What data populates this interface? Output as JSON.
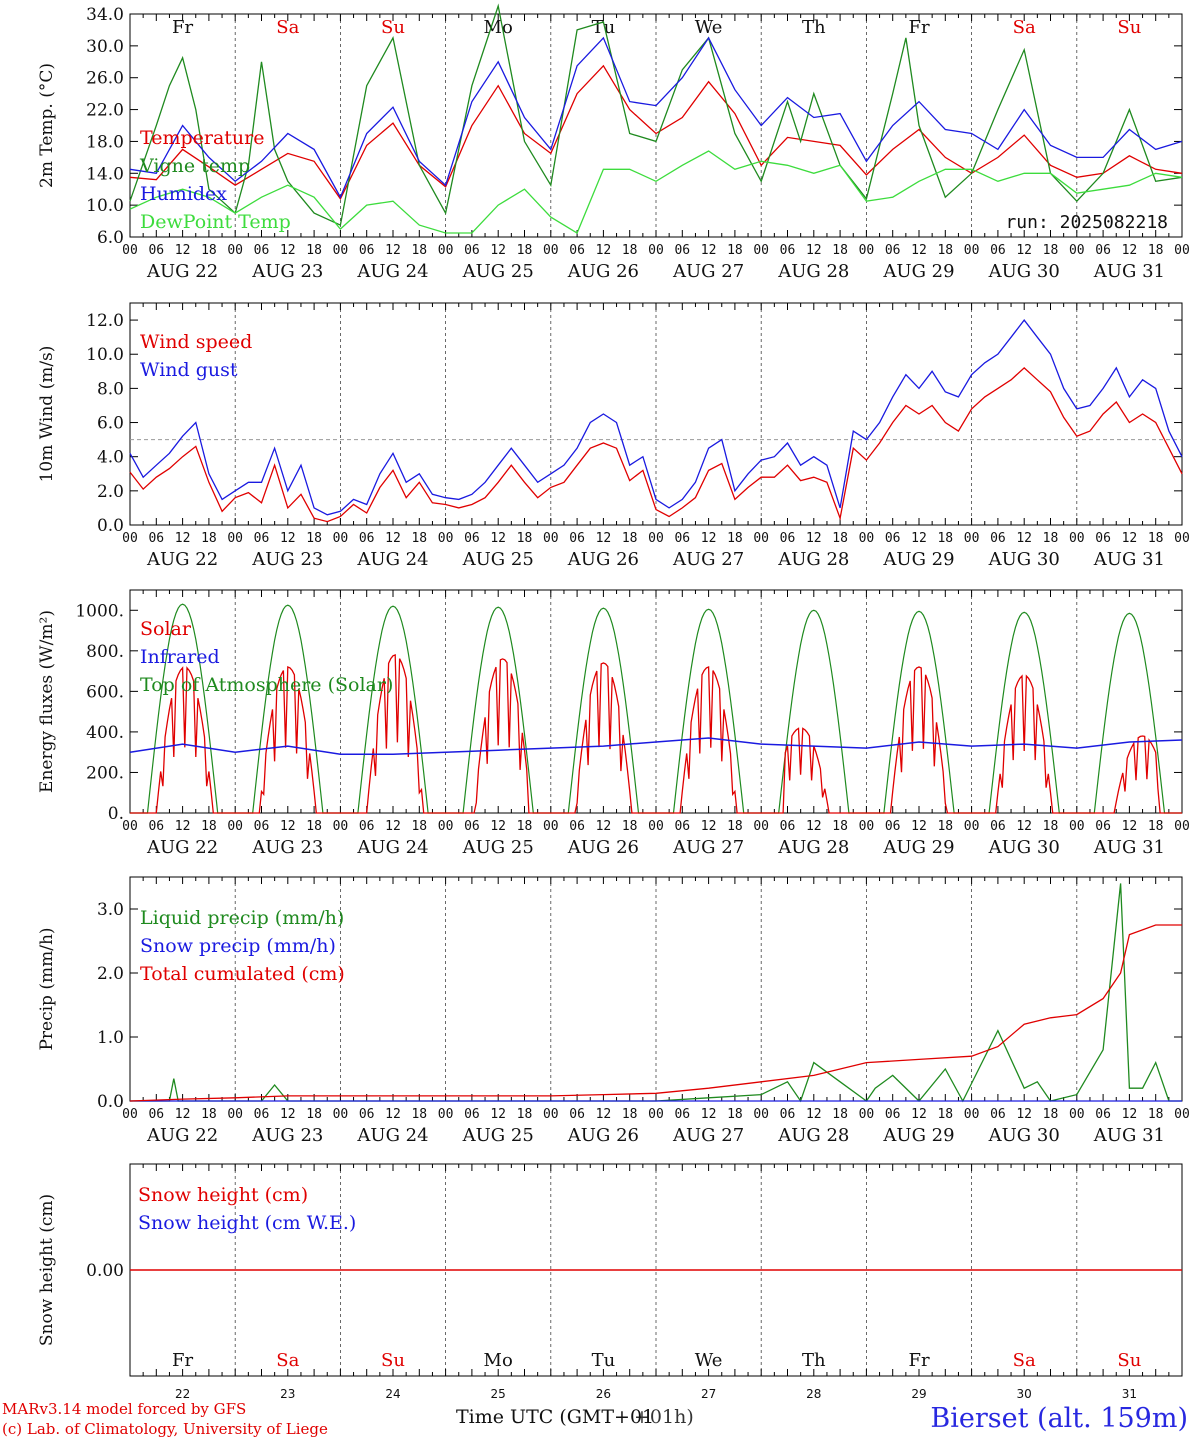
{
  "run_label": "run: 2025082218",
  "x_axis": {
    "hour_ticks": [
      "00",
      "06",
      "12",
      "18"
    ],
    "end_tick": "00",
    "dates": [
      "AUG 22",
      "AUG 23",
      "AUG 24",
      "AUG 25",
      "AUG 26",
      "AUG 27",
      "AUG 28",
      "AUG 29",
      "AUG 30",
      "AUG 31"
    ],
    "weekdays": [
      "Fr",
      "Sa",
      "Su",
      "Mo",
      "Tu",
      "We",
      "Th",
      "Fr",
      "Sa",
      "Su"
    ],
    "weekend_flags": [
      false,
      true,
      true,
      false,
      false,
      false,
      false,
      false,
      true,
      true
    ],
    "day_numbers": [
      "22",
      "23",
      "24",
      "25",
      "26",
      "27",
      "28",
      "29",
      "30",
      "31"
    ],
    "title": "Time UTC (GMT+01",
    "title_overlap": "+01h)"
  },
  "footer": {
    "model": "MARv3.14 model forced by GFS",
    "lab": "(c) Lab. of Climatology, University of Liege",
    "station": "Bierset (alt. 159m)"
  },
  "colors": {
    "red": "#e00000",
    "blue": "#1a1ae0",
    "green": "#1f8a1f",
    "lightgreen": "#3ddc3d",
    "grid": "#444444"
  },
  "chart_data": [
    {
      "type": "line",
      "id": "temp",
      "ylabel": "2m Temp. (°C)",
      "ylim": [
        6.0,
        34.0
      ],
      "yticks": [
        "6.0",
        "10.0",
        "14.0",
        "18.0",
        "22.0",
        "26.0",
        "30.0",
        "34.0"
      ],
      "ytick_values": [
        6,
        10,
        14,
        18,
        22,
        26,
        30,
        34
      ],
      "x_unit": "hours since 2025-08-22 00 UTC",
      "series": [
        {
          "name": "Temperature",
          "color": "red",
          "x": [
            0,
            6,
            12,
            18,
            24,
            30,
            36,
            42,
            48,
            54,
            60,
            66,
            72,
            78,
            84,
            90,
            96,
            102,
            108,
            114,
            120,
            126,
            132,
            138,
            144,
            150,
            156,
            162,
            168,
            174,
            180,
            186,
            192,
            198,
            204,
            210,
            216,
            222,
            228,
            234,
            240
          ],
          "y": [
            13.5,
            13.2,
            17.0,
            14.8,
            12.5,
            14.5,
            16.5,
            15.5,
            10.8,
            17.5,
            20.3,
            15.0,
            12.3,
            20.0,
            25.0,
            19.0,
            16.5,
            24.0,
            27.5,
            22.0,
            19.0,
            21.0,
            25.5,
            21.5,
            15.0,
            18.5,
            18.0,
            17.5,
            13.8,
            17.0,
            19.5,
            16.0,
            14.0,
            16.0,
            18.8,
            15.0,
            13.5,
            14.0,
            16.2,
            14.5,
            14.0
          ]
        },
        {
          "name": "Vigne temp",
          "color": "green",
          "x": [
            0,
            6,
            9,
            12,
            15,
            18,
            24,
            27,
            30,
            33,
            36,
            42,
            48,
            54,
            60,
            66,
            72,
            78,
            84,
            90,
            96,
            102,
            108,
            114,
            120,
            126,
            132,
            138,
            144,
            150,
            153,
            156,
            162,
            168,
            174,
            177,
            180,
            186,
            192,
            198,
            204,
            210,
            216,
            222,
            228,
            234,
            240
          ],
          "y": [
            10.5,
            20.0,
            25.0,
            28.5,
            22.0,
            12.0,
            9.0,
            15.0,
            28.0,
            17.0,
            13.0,
            9.0,
            7.5,
            25.0,
            31.0,
            15.0,
            9.0,
            25.0,
            35.0,
            18.0,
            12.5,
            32.0,
            33.0,
            19.0,
            18.0,
            27.0,
            31.0,
            19.0,
            13.0,
            23.0,
            18.0,
            24.0,
            15.0,
            10.8,
            24.0,
            31.0,
            20.0,
            11.0,
            14.0,
            22.0,
            29.5,
            14.0,
            10.5,
            14.0,
            22.0,
            13.0,
            13.5
          ]
        },
        {
          "name": "Humidex",
          "color": "blue",
          "x": [
            0,
            6,
            12,
            18,
            24,
            30,
            36,
            42,
            48,
            54,
            60,
            66,
            72,
            78,
            84,
            90,
            96,
            102,
            108,
            114,
            120,
            126,
            132,
            138,
            144,
            150,
            156,
            162,
            168,
            174,
            180,
            186,
            192,
            198,
            204,
            210,
            216,
            222,
            228,
            234,
            240
          ],
          "y": [
            14.5,
            14.0,
            20.0,
            16.0,
            13.0,
            15.5,
            19.0,
            17.0,
            11.0,
            19.0,
            22.3,
            15.5,
            12.5,
            23.0,
            28.0,
            21.0,
            17.0,
            27.5,
            31.0,
            23.0,
            22.5,
            26.0,
            31.0,
            24.5,
            20.0,
            23.5,
            21.0,
            21.5,
            15.5,
            20.0,
            23.0,
            19.5,
            19.0,
            17.0,
            22.0,
            17.5,
            16.0,
            16.0,
            19.5,
            17.0,
            18.0
          ]
        },
        {
          "name": "DewPoint Temp",
          "color": "lightgreen",
          "x": [
            0,
            6,
            12,
            18,
            24,
            30,
            36,
            42,
            48,
            54,
            60,
            66,
            72,
            78,
            84,
            90,
            96,
            102,
            108,
            114,
            120,
            126,
            132,
            138,
            144,
            150,
            156,
            162,
            168,
            174,
            180,
            186,
            192,
            198,
            204,
            210,
            216,
            222,
            228,
            234,
            240
          ],
          "y": [
            9.5,
            11.0,
            12.0,
            11.0,
            9.0,
            11.0,
            12.5,
            11.0,
            7.0,
            10.0,
            10.5,
            7.5,
            6.5,
            6.5,
            10.0,
            12.0,
            8.5,
            6.5,
            14.5,
            14.5,
            13.0,
            15.0,
            16.8,
            14.5,
            15.5,
            15.0,
            14.0,
            15.0,
            10.5,
            11.0,
            13.0,
            14.5,
            14.5,
            13.0,
            14.0,
            14.0,
            11.5,
            12.0,
            12.5,
            14.0,
            13.5
          ]
        }
      ],
      "legend_placement": "left"
    },
    {
      "type": "line",
      "id": "wind",
      "ylabel": "10m Wind (m/s)",
      "ylim": [
        0.0,
        13.0
      ],
      "yticks": [
        "0.0",
        "2.0",
        "4.0",
        "6.0",
        "8.0",
        "10.0",
        "12.0"
      ],
      "ytick_values": [
        0,
        2,
        4,
        6,
        8,
        10,
        12
      ],
      "reference_line": 5.0,
      "series": [
        {
          "name": "Wind speed",
          "color": "red",
          "x": [
            0,
            3,
            6,
            9,
            12,
            15,
            18,
            21,
            24,
            27,
            30,
            33,
            36,
            39,
            42,
            45,
            48,
            51,
            54,
            57,
            60,
            63,
            66,
            69,
            72,
            75,
            78,
            81,
            84,
            87,
            90,
            93,
            96,
            99,
            102,
            105,
            108,
            111,
            114,
            117,
            120,
            123,
            126,
            129,
            132,
            135,
            138,
            141,
            144,
            147,
            150,
            153,
            156,
            159,
            162,
            165,
            168,
            171,
            174,
            177,
            180,
            183,
            186,
            189,
            192,
            195,
            198,
            201,
            204,
            207,
            210,
            213,
            216,
            219,
            222,
            225,
            228,
            231,
            234,
            237,
            240
          ],
          "y": [
            3.1,
            2.1,
            2.8,
            3.3,
            4.0,
            4.6,
            2.5,
            0.8,
            1.6,
            1.9,
            1.3,
            3.5,
            1.0,
            1.8,
            0.4,
            0.2,
            0.5,
            1.2,
            0.7,
            2.2,
            3.2,
            1.6,
            2.5,
            1.3,
            1.2,
            1.0,
            1.2,
            1.6,
            2.5,
            3.5,
            2.5,
            1.6,
            2.2,
            2.5,
            3.5,
            4.5,
            4.8,
            4.5,
            2.6,
            3.2,
            0.9,
            0.5,
            1.0,
            1.6,
            3.2,
            3.6,
            1.5,
            2.2,
            2.8,
            2.8,
            3.5,
            2.6,
            2.8,
            2.5,
            0.4,
            4.5,
            3.8,
            4.8,
            6.0,
            7.0,
            6.5,
            7.0,
            6.0,
            5.5,
            6.8,
            7.5,
            8.0,
            8.5,
            9.2,
            8.5,
            7.8,
            6.3,
            5.2,
            5.5,
            6.5,
            7.2,
            6.0,
            6.5,
            6.0,
            4.5,
            3.0
          ]
        },
        {
          "name": "Wind gust",
          "color": "blue",
          "x": [
            0,
            3,
            6,
            9,
            12,
            15,
            18,
            21,
            24,
            27,
            30,
            33,
            36,
            39,
            42,
            45,
            48,
            51,
            54,
            57,
            60,
            63,
            66,
            69,
            72,
            75,
            78,
            81,
            84,
            87,
            90,
            93,
            96,
            99,
            102,
            105,
            108,
            111,
            114,
            117,
            120,
            123,
            126,
            129,
            132,
            135,
            138,
            141,
            144,
            147,
            150,
            153,
            156,
            159,
            162,
            165,
            168,
            171,
            174,
            177,
            180,
            183,
            186,
            189,
            192,
            195,
            198,
            201,
            204,
            207,
            210,
            213,
            216,
            219,
            222,
            225,
            228,
            231,
            234,
            237,
            240
          ],
          "y": [
            4.2,
            2.8,
            3.5,
            4.2,
            5.2,
            6.0,
            3.0,
            1.5,
            2.0,
            2.5,
            2.5,
            4.5,
            2.0,
            3.5,
            1.0,
            0.6,
            0.8,
            1.5,
            1.2,
            3.0,
            4.2,
            2.5,
            3.0,
            1.8,
            1.6,
            1.5,
            1.8,
            2.5,
            3.5,
            4.5,
            3.5,
            2.5,
            3.0,
            3.5,
            4.5,
            6.0,
            6.5,
            6.0,
            3.5,
            4.0,
            1.5,
            1.0,
            1.5,
            2.5,
            4.5,
            5.0,
            2.0,
            3.0,
            3.8,
            4.0,
            4.8,
            3.5,
            4.0,
            3.5,
            1.0,
            5.5,
            5.0,
            6.0,
            7.5,
            8.8,
            8.0,
            9.0,
            7.8,
            7.5,
            8.8,
            9.5,
            10.0,
            11.0,
            12.0,
            11.0,
            10.0,
            8.0,
            6.8,
            7.0,
            8.0,
            9.2,
            7.5,
            8.5,
            8.0,
            5.5,
            4.0
          ]
        }
      ],
      "legend_placement": "top-left"
    },
    {
      "type": "line",
      "id": "energy",
      "ylabel": "Energy fluxes (W/m²)",
      "ylim": [
        0,
        1100
      ],
      "yticks": [
        "0.",
        "200.",
        "400.",
        "600.",
        "800.",
        "1000."
      ],
      "ytick_values": [
        0,
        200,
        400,
        600,
        800,
        1000
      ],
      "series": [
        {
          "name": "Solar",
          "color": "red",
          "peaks": [
            720,
            720,
            780,
            760,
            740,
            720,
            420,
            720,
            680,
            380
          ],
          "peak_hours": [
            12.5,
            12,
            12.5,
            13,
            12,
            12,
            9,
            12,
            12,
            15
          ]
        },
        {
          "name": "Infrared",
          "color": "blue",
          "x": [
            0,
            12,
            24,
            36,
            48,
            60,
            72,
            84,
            96,
            108,
            120,
            132,
            144,
            156,
            168,
            180,
            192,
            204,
            216,
            228,
            240
          ],
          "y": [
            300,
            340,
            300,
            330,
            290,
            290,
            300,
            310,
            320,
            330,
            350,
            370,
            340,
            330,
            320,
            350,
            330,
            340,
            320,
            350,
            360
          ]
        },
        {
          "name": "Top of Atmosphere (Solar)",
          "color": "green",
          "daily_peak": [
            1030,
            1025,
            1020,
            1015,
            1010,
            1005,
            1000,
            995,
            990,
            985
          ],
          "sunrise_hour": 4,
          "sunset_hour": 20
        }
      ],
      "legend_placement": "top-left"
    },
    {
      "type": "line",
      "id": "precip",
      "ylabel": "Precip (mm/h)",
      "ylim": [
        0.0,
        3.5
      ],
      "yticks": [
        "0.0",
        "1.0",
        "2.0",
        "3.0"
      ],
      "ytick_values": [
        0,
        1,
        2,
        3
      ],
      "series": [
        {
          "name": "Liquid precip (mm/h)",
          "color": "green",
          "x": [
            0,
            9,
            10,
            11,
            30,
            33,
            36,
            120,
            132,
            144,
            150,
            153,
            156,
            162,
            168,
            170,
            174,
            180,
            186,
            190,
            198,
            204,
            207,
            210,
            216,
            222,
            226,
            228,
            231,
            234,
            237,
            240
          ],
          "y": [
            0,
            0,
            0.35,
            0,
            0,
            0.25,
            0,
            0,
            0.05,
            0.1,
            0.3,
            0,
            0.6,
            0.3,
            0,
            0.2,
            0.4,
            0,
            0.5,
            0,
            1.1,
            0.2,
            0.3,
            0,
            0.1,
            0.8,
            3.4,
            0.2,
            0.2,
            0.6,
            0,
            0
          ]
        },
        {
          "name": "Snow precip (mm/h)",
          "color": "blue",
          "x": [
            0,
            240
          ],
          "y": [
            0,
            0
          ]
        },
        {
          "name": "Total cumulated (cm)",
          "color": "red",
          "x": [
            0,
            12,
            24,
            36,
            48,
            60,
            72,
            84,
            96,
            108,
            120,
            132,
            144,
            156,
            168,
            180,
            192,
            198,
            204,
            210,
            216,
            222,
            226,
            228,
            234,
            240
          ],
          "y": [
            0,
            0.03,
            0.05,
            0.08,
            0.08,
            0.08,
            0.08,
            0.08,
            0.08,
            0.1,
            0.12,
            0.2,
            0.3,
            0.4,
            0.6,
            0.65,
            0.7,
            0.85,
            1.2,
            1.3,
            1.35,
            1.6,
            2.0,
            2.6,
            2.75,
            2.75
          ]
        }
      ],
      "legend_placement": "top-left"
    },
    {
      "type": "line",
      "id": "snow",
      "ylabel": "Snow height (cm)",
      "yticks": [
        "0.00"
      ],
      "ytick_values": [
        0
      ],
      "series": [
        {
          "name": "Snow height (cm)",
          "color": "red",
          "x": [
            0,
            240
          ],
          "y": [
            0,
            0
          ]
        },
        {
          "name": "Snow height (cm W.E.)",
          "color": "blue",
          "x": [
            0,
            240
          ],
          "y": [
            0,
            0
          ]
        }
      ],
      "legend_placement": "top-left"
    }
  ]
}
